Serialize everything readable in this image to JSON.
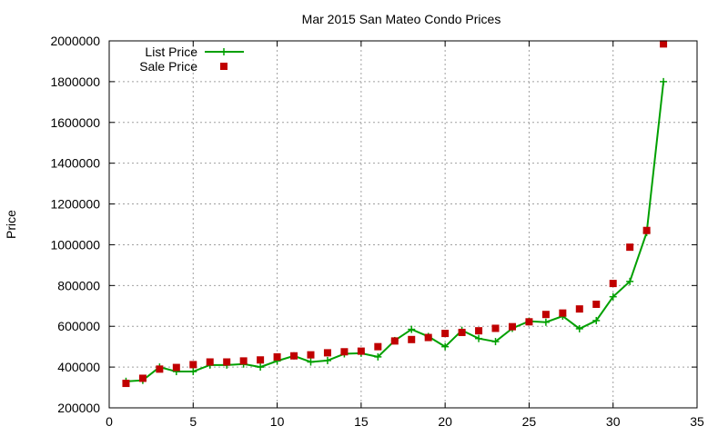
{
  "chart_data": {
    "type": "line",
    "title": "Mar 2015 San Mateo Condo Prices",
    "xlabel": "",
    "ylabel": "Price",
    "xlim": [
      0,
      35
    ],
    "ylim": [
      200000,
      2000000
    ],
    "xticks": [
      0,
      5,
      10,
      15,
      20,
      25,
      30,
      35
    ],
    "yticks": [
      200000,
      400000,
      600000,
      800000,
      1000000,
      1200000,
      1400000,
      1600000,
      1800000,
      2000000
    ],
    "xtick_labels": [
      "0",
      "5",
      "10",
      "15",
      "20",
      "25",
      "30",
      "35"
    ],
    "ytick_labels": [
      "200000",
      "400000",
      "600000",
      "800000",
      "1000000",
      "1200000",
      "1400000",
      "1600000",
      "1800000",
      "2000000"
    ],
    "grid": true,
    "legend_position": "top-left",
    "x": [
      1,
      2,
      3,
      4,
      5,
      6,
      7,
      8,
      9,
      10,
      11,
      12,
      13,
      14,
      15,
      16,
      17,
      18,
      19,
      20,
      21,
      22,
      23,
      24,
      25,
      26,
      27,
      28,
      29,
      30,
      31,
      32,
      33
    ],
    "series": [
      {
        "name": "List Price",
        "style": "line-plus",
        "color": "#00a000",
        "values": [
          330000,
          335000,
          400000,
          378000,
          378000,
          410000,
          410000,
          415000,
          400000,
          430000,
          455000,
          425000,
          432000,
          465000,
          468000,
          450000,
          530000,
          585000,
          550000,
          500000,
          580000,
          540000,
          525000,
          590000,
          625000,
          620000,
          650000,
          588000,
          628000,
          745000,
          820000,
          1060000,
          1800000
        ]
      },
      {
        "name": "Sale Price",
        "style": "square",
        "color": "#c00000",
        "values": [
          320000,
          345000,
          390000,
          398000,
          412000,
          425000,
          425000,
          430000,
          435000,
          450000,
          455000,
          460000,
          470000,
          475000,
          478000,
          500000,
          528000,
          535000,
          545000,
          565000,
          570000,
          578000,
          590000,
          598000,
          622000,
          658000,
          665000,
          685000,
          708000,
          810000,
          988000,
          1070000,
          1985000
        ]
      }
    ]
  }
}
